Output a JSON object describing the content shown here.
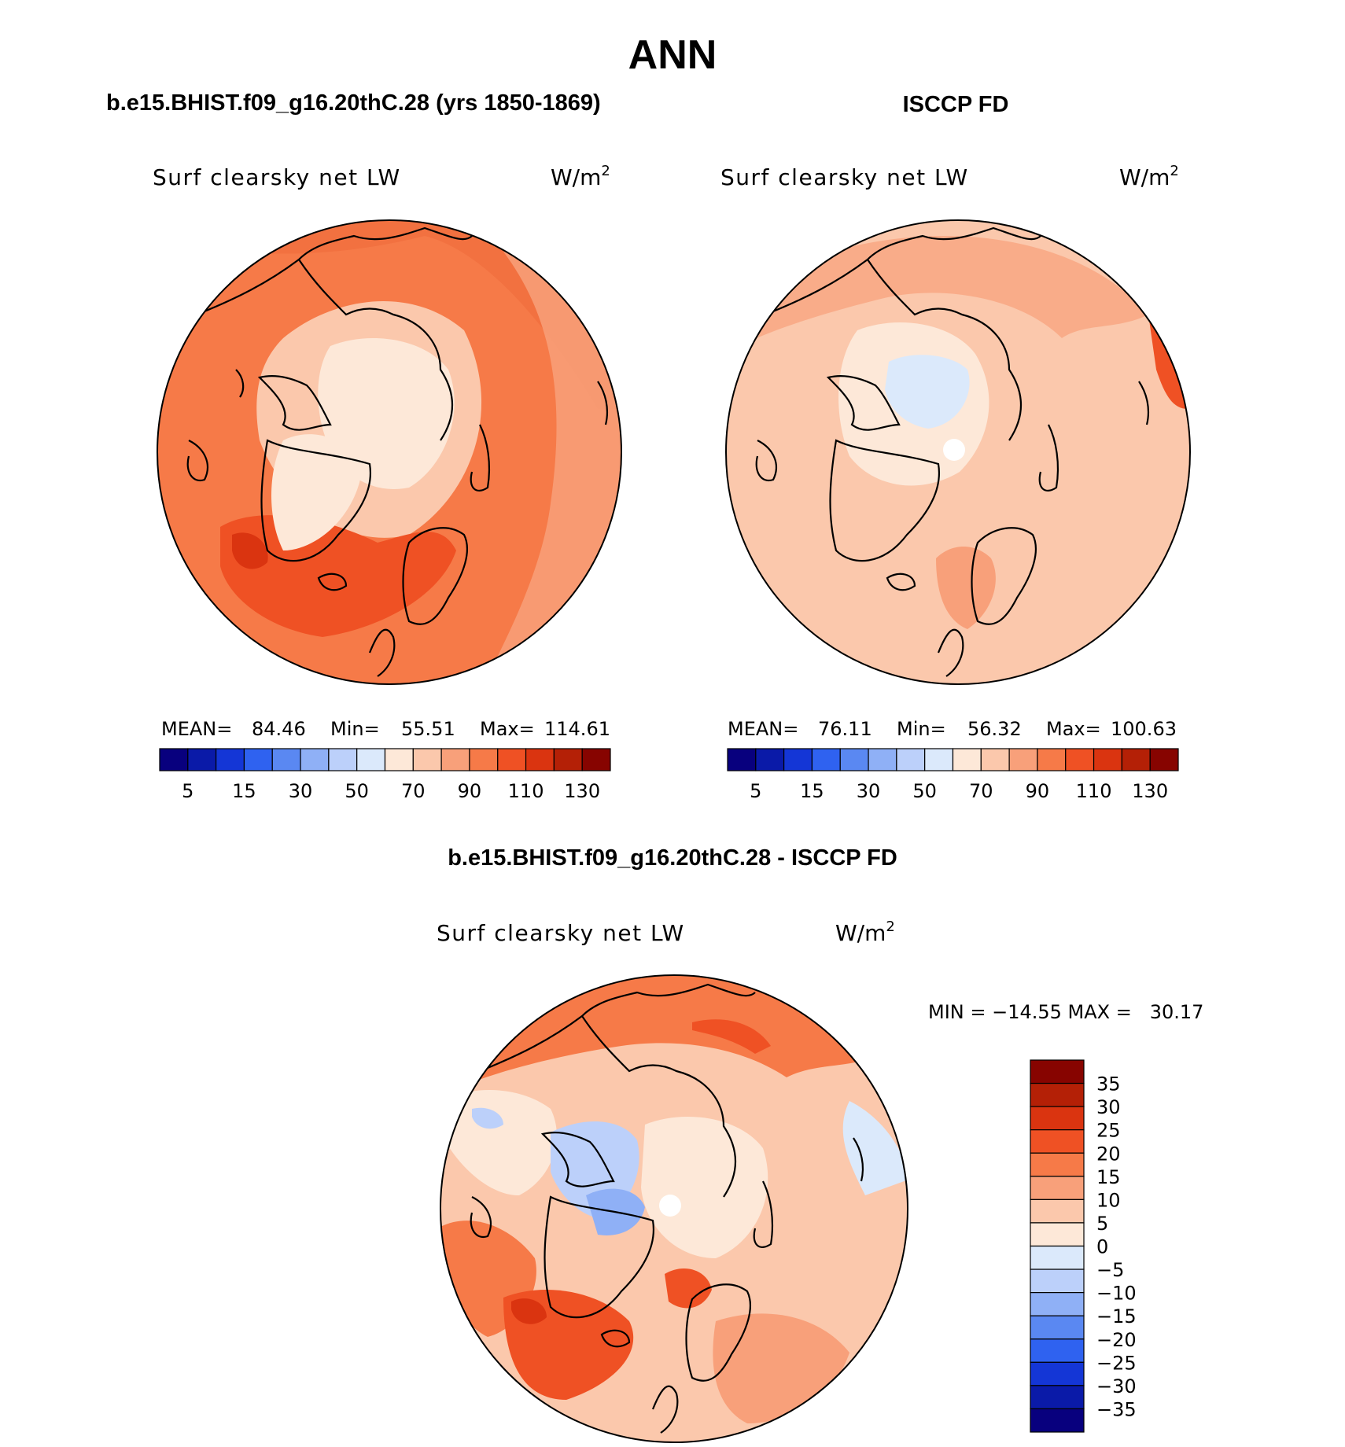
{
  "title": "ANN",
  "panels": {
    "model": {
      "header": "b.e15.BHIST.f09_g16.20thC.28 (yrs 1850-1869)",
      "variable": "Surf clearsky net LW",
      "units_base": "W/m",
      "units_exp": "2",
      "stats": {
        "mean_label": "MEAN=",
        "mean": "84.46",
        "min_label": "Min=",
        "min": "55.51",
        "max_label": "Max=",
        "max": "114.61"
      }
    },
    "obs": {
      "header": "ISCCP FD",
      "variable": "Surf clearsky net LW",
      "units_base": "W/m",
      "units_exp": "2",
      "stats": {
        "mean_label": "MEAN=",
        "mean": "76.11",
        "min_label": "Min=",
        "min": "56.32",
        "max_label": "Max=",
        "max": "100.63"
      }
    },
    "diff": {
      "header": "b.e15.BHIST.f09_g16.20thC.28 - ISCCP FD",
      "variable": "Surf clearsky net LW",
      "units_base": "W/m",
      "units_exp": "2",
      "minmax": "MIN = −14.55 MAX =   30.17"
    }
  },
  "chart_data": [
    {
      "type": "heatmap",
      "title": "Surf clearsky net LW",
      "subtitle": "b.e15.BHIST.f09_g16.20thC.28 (yrs 1850-1869)",
      "units": "W/m2",
      "projection": "north polar stereographic",
      "stats": {
        "mean": 84.46,
        "min": 55.51,
        "max": 114.61
      },
      "colorbar_levels": [
        5,
        10,
        15,
        20,
        30,
        40,
        50,
        60,
        70,
        80,
        90,
        100,
        110,
        120,
        130
      ],
      "colorbar_tick_labels": [
        "5",
        "15",
        "30",
        "50",
        "70",
        "90",
        "110",
        "130"
      ],
      "colors": [
        "#08007e",
        "#0a1aa8",
        "#1436d6",
        "#2f62f0",
        "#5a88f2",
        "#8fb0f6",
        "#bcd0fa",
        "#dbe9fb",
        "#fde8d8",
        "#fbc8ac",
        "#f8a07a",
        "#f67a48",
        "#ef5124",
        "#da3410",
        "#b42006",
        "#870400"
      ]
    },
    {
      "type": "heatmap",
      "title": "Surf clearsky net LW",
      "subtitle": "ISCCP FD",
      "units": "W/m2",
      "projection": "north polar stereographic",
      "stats": {
        "mean": 76.11,
        "min": 56.32,
        "max": 100.63
      },
      "colorbar_levels": [
        5,
        10,
        15,
        20,
        30,
        40,
        50,
        60,
        70,
        80,
        90,
        100,
        110,
        120,
        130
      ],
      "colorbar_tick_labels": [
        "5",
        "15",
        "30",
        "50",
        "70",
        "90",
        "110",
        "130"
      ],
      "colors": [
        "#08007e",
        "#0a1aa8",
        "#1436d6",
        "#2f62f0",
        "#5a88f2",
        "#8fb0f6",
        "#bcd0fa",
        "#dbe9fb",
        "#fde8d8",
        "#fbc8ac",
        "#f8a07a",
        "#f67a48",
        "#ef5124",
        "#da3410",
        "#b42006",
        "#870400"
      ]
    },
    {
      "type": "heatmap",
      "title": "Surf clearsky net LW",
      "subtitle": "b.e15.BHIST.f09_g16.20thC.28 - ISCCP FD",
      "units": "W/m2",
      "projection": "north polar stereographic",
      "stats": {
        "min": -14.55,
        "max": 30.17
      },
      "colorbar_levels": [
        -35,
        -30,
        -25,
        -20,
        -15,
        -10,
        -5,
        0,
        5,
        10,
        15,
        20,
        25,
        30,
        35
      ],
      "colorbar_tick_labels": [
        "−35",
        "−30",
        "−25",
        "−20",
        "−15",
        "−10",
        "−5",
        "0",
        "5",
        "10",
        "15",
        "20",
        "25",
        "30",
        "35"
      ],
      "colors": [
        "#08007e",
        "#0a1aa8",
        "#1436d6",
        "#2f62f0",
        "#5a88f2",
        "#8fb0f6",
        "#bcd0fa",
        "#dbe9fb",
        "#fde8d8",
        "#fbc8ac",
        "#f8a07a",
        "#f67a48",
        "#ef5124",
        "#da3410",
        "#b42006",
        "#870400"
      ]
    }
  ]
}
